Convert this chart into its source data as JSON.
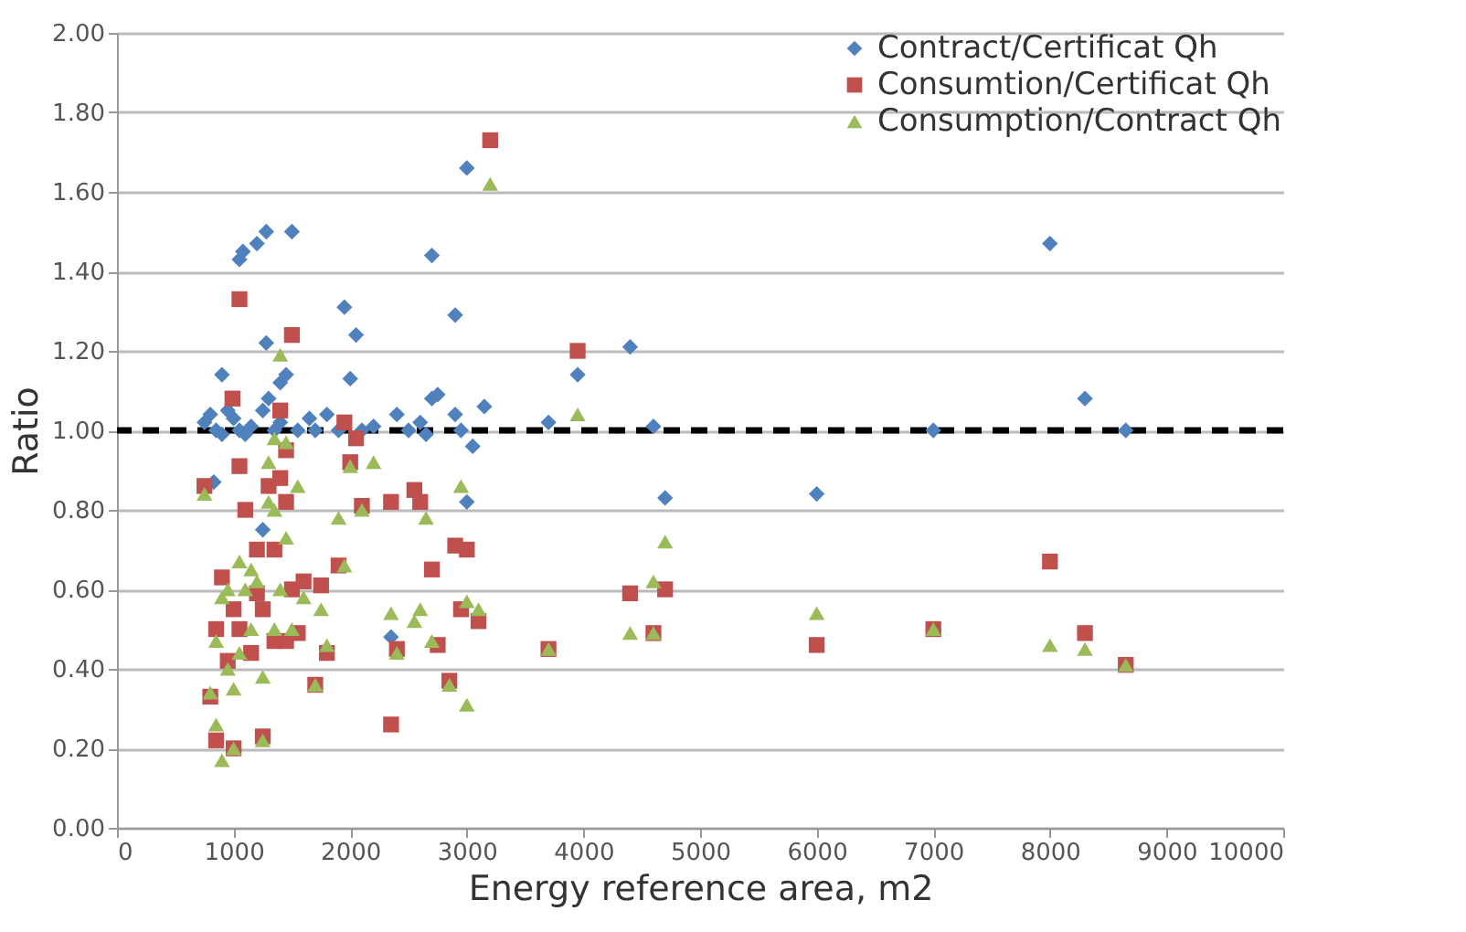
{
  "chart_data": {
    "type": "scatter",
    "xlabel": "Energy reference area, m2",
    "ylabel": "Ratio",
    "xlim": [
      0,
      10000
    ],
    "xticks": [
      0,
      1000,
      2000,
      3000,
      4000,
      5000,
      6000,
      7000,
      8000,
      9000,
      10000
    ],
    "ylim": [
      0,
      2
    ],
    "yticks": [
      {
        "value": 0,
        "label": "0.00"
      },
      {
        "value": 0.2,
        "label": "0.20"
      },
      {
        "value": 0.4,
        "label": "0.40"
      },
      {
        "value": 0.6,
        "label": "0.60"
      },
      {
        "value": 0.8,
        "label": "0.80"
      },
      {
        "value": 1,
        "label": "1.00"
      },
      {
        "value": 1.2,
        "label": "1.20"
      },
      {
        "value": 1.4,
        "label": "1.40"
      },
      {
        "value": 1.6,
        "label": "1.60"
      },
      {
        "value": 1.8,
        "label": "1.80"
      },
      {
        "value": 2,
        "label": "2.00"
      }
    ],
    "grid": "y",
    "legend": "top right",
    "ref_lines": [
      {
        "axis": "y",
        "value": 1,
        "label": null,
        "color": "#000000",
        "line_style": "dashed"
      }
    ],
    "series": [
      {
        "name": "Contract/Certificat Qh",
        "color": "#4f81bd",
        "marker": "diamond",
        "x": [
          1050,
          1080,
          1200,
          1280,
          1500,
          1280,
          1950,
          2050,
          1400,
          1450,
          1300,
          900,
          2700,
          2900,
          3000,
          3150,
          2700,
          2750,
          2000,
          3700,
          3950,
          4400,
          4600,
          4700,
          6000,
          7000,
          8000,
          8300,
          8650,
          3000,
          3050,
          2350,
          1250,
          830,
          750,
          800,
          850,
          900,
          950,
          1000,
          1050,
          1100,
          1150,
          1250,
          1350,
          1400,
          1550,
          1650,
          1700,
          1800,
          1900,
          2100,
          2200,
          2400,
          2500,
          2600,
          2900,
          2950,
          2650
        ],
        "values": [
          1.43,
          1.45,
          1.47,
          1.5,
          1.5,
          1.22,
          1.31,
          1.24,
          1.12,
          1.14,
          1.08,
          1.14,
          1.44,
          1.29,
          1.66,
          1.06,
          1.08,
          1.09,
          1.13,
          1.02,
          1.14,
          1.21,
          1.01,
          0.83,
          0.84,
          1.0,
          1.47,
          1.08,
          1.0,
          0.82,
          0.96,
          0.48,
          0.75,
          0.87,
          1.02,
          1.04,
          1.0,
          0.99,
          1.05,
          1.03,
          1.0,
          0.99,
          1.01,
          1.05,
          1.0,
          1.02,
          1.0,
          1.03,
          1.0,
          1.04,
          1.0,
          1.0,
          1.01,
          1.04,
          1.0,
          1.02,
          1.04,
          1.0,
          0.99
        ]
      },
      {
        "name": "Consumtion/Certificat Qh",
        "color": "#c0504d",
        "marker": "square",
        "x": [
          3200,
          1050,
          1500,
          990,
          1400,
          1950,
          2050,
          1450,
          3950,
          4400,
          4600,
          4700,
          6000,
          7000,
          8000,
          8300,
          8650,
          3700,
          2350,
          2400,
          2700,
          2900,
          3000,
          2550,
          2600,
          2850,
          2950,
          3100,
          2750,
          2350,
          2100,
          2000,
          1900,
          1750,
          1700,
          1800,
          1600,
          1500,
          1450,
          1350,
          1250,
          1250,
          1000,
          850,
          800,
          750,
          850,
          900,
          950,
          1000,
          1050,
          1100,
          1200,
          1300,
          1350,
          1400,
          1150,
          1050,
          1450,
          1550,
          1200
        ],
        "values": [
          1.73,
          1.33,
          1.24,
          1.08,
          1.05,
          1.02,
          0.98,
          0.95,
          1.2,
          0.59,
          0.49,
          0.6,
          0.46,
          0.5,
          0.67,
          0.49,
          0.41,
          0.45,
          0.26,
          0.45,
          0.65,
          0.71,
          0.7,
          0.85,
          0.82,
          0.37,
          0.55,
          0.52,
          0.46,
          0.82,
          0.81,
          0.92,
          0.66,
          0.61,
          0.36,
          0.44,
          0.62,
          0.6,
          0.47,
          0.47,
          0.55,
          0.23,
          0.2,
          0.22,
          0.33,
          0.86,
          0.5,
          0.63,
          0.42,
          0.55,
          0.91,
          0.8,
          0.59,
          0.86,
          0.7,
          0.88,
          0.44,
          0.5,
          0.82,
          0.49,
          0.7
        ]
      },
      {
        "name": "Consumption/Contract Qh",
        "color": "#9bbb59",
        "marker": "triangle",
        "x": [
          3200,
          1400,
          1350,
          1450,
          1300,
          2000,
          3950,
          2950,
          2650,
          4700,
          4600,
          4400,
          4600,
          6000,
          7000,
          8000,
          8300,
          8650,
          3700,
          3000,
          3000,
          3100,
          2700,
          2850,
          2400,
          2550,
          2600,
          2350,
          2200,
          2100,
          1950,
          1900,
          1700,
          1750,
          1800,
          1600,
          1500,
          1450,
          1400,
          1350,
          1300,
          1250,
          1250,
          1100,
          1050,
          1000,
          950,
          900,
          850,
          800,
          750,
          850,
          900,
          950,
          1050,
          1150,
          1200,
          1350,
          1000,
          1150,
          1550
        ],
        "values": [
          1.62,
          1.19,
          0.98,
          0.97,
          0.92,
          0.91,
          1.04,
          0.86,
          0.78,
          0.72,
          0.62,
          0.49,
          0.49,
          0.54,
          0.5,
          0.46,
          0.45,
          0.41,
          0.45,
          0.31,
          0.57,
          0.55,
          0.47,
          0.36,
          0.44,
          0.52,
          0.55,
          0.54,
          0.92,
          0.8,
          0.66,
          0.78,
          0.36,
          0.55,
          0.46,
          0.58,
          0.5,
          0.73,
          0.6,
          0.5,
          0.82,
          0.38,
          0.22,
          0.6,
          0.67,
          0.35,
          0.6,
          0.17,
          0.26,
          0.34,
          0.84,
          0.47,
          0.58,
          0.4,
          0.44,
          0.5,
          0.62,
          0.8,
          0.2,
          0.65,
          0.86
        ]
      }
    ]
  }
}
